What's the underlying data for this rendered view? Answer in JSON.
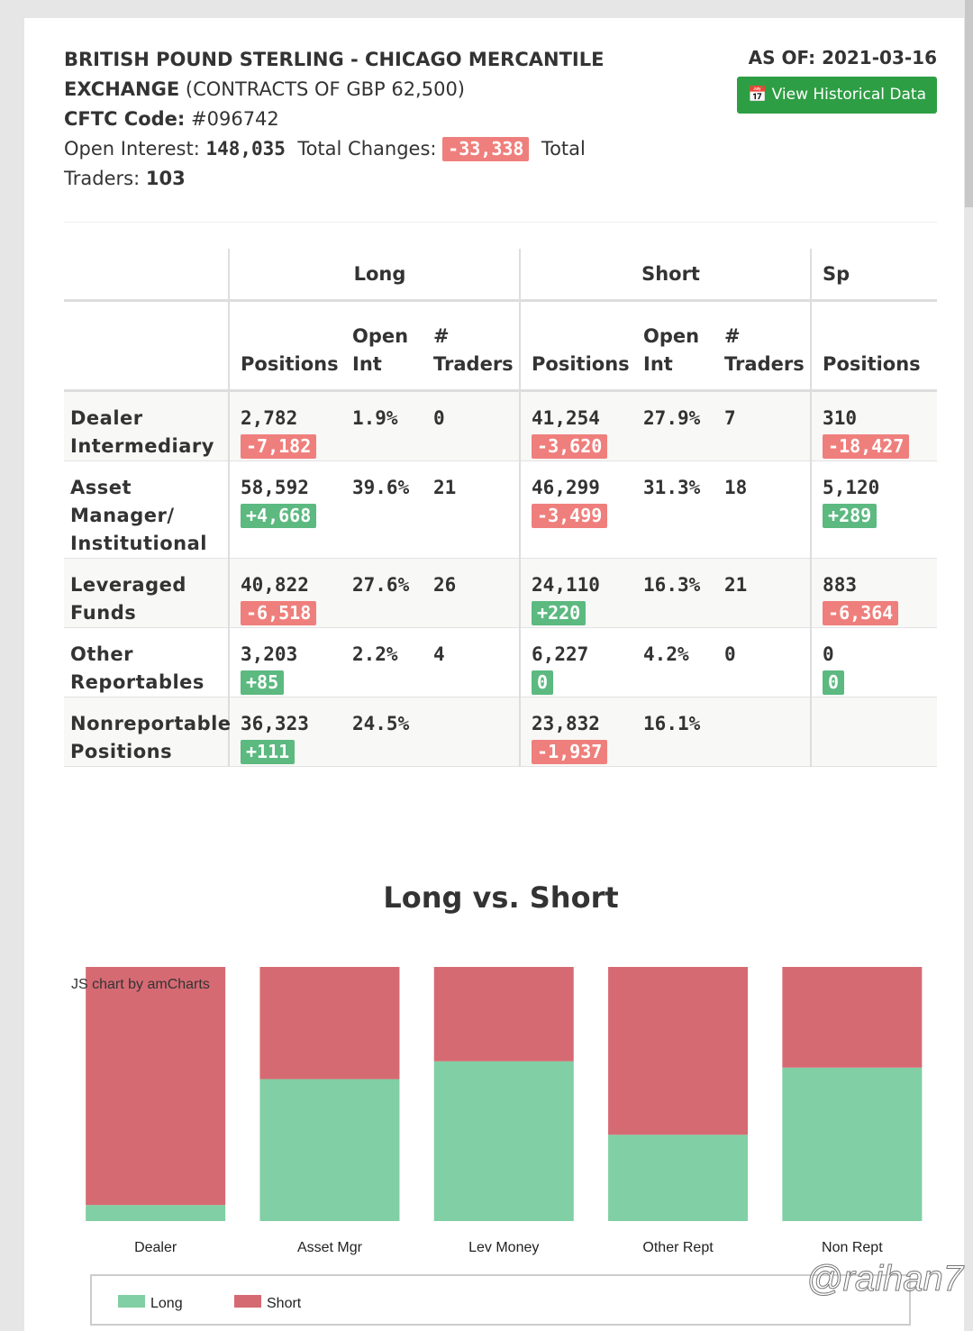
{
  "header": {
    "title": "BRITISH POUND STERLING - CHICAGO MERCANTILE EXCHANGE",
    "contract": "(CONTRACTS OF GBP 62,500)",
    "as_of_label": "AS OF:",
    "as_of": "2021-03-16",
    "button": "View Historical Data",
    "code_label": "CFTC Code:",
    "code": "#096742",
    "open_interest_label": "Open Interest:",
    "open_interest": "148,035",
    "total_changes_label": "Total Changes:",
    "total_changes": "-33,338",
    "total_traders_label": "Total Traders:",
    "total_traders": "103"
  },
  "table": {
    "groups": [
      "Long",
      "Short",
      "Sp"
    ],
    "columns": [
      "Positions",
      "Open Int",
      "# Traders",
      "Positions",
      "Open Int",
      "# Traders",
      "Positions"
    ],
    "rows": [
      {
        "label": "Dealer Intermediary",
        "cells": [
          {
            "value": "2,782",
            "change": "-7,182"
          },
          {
            "value": "1.9%"
          },
          {
            "value": "0"
          },
          {
            "value": "41,254",
            "change": "-3,620"
          },
          {
            "value": "27.9%"
          },
          {
            "value": "7"
          },
          {
            "value": "310",
            "change": "-18,427"
          }
        ]
      },
      {
        "label": "Asset Manager/ Institutional",
        "cells": [
          {
            "value": "58,592",
            "change": "+4,668"
          },
          {
            "value": "39.6%"
          },
          {
            "value": "21"
          },
          {
            "value": "46,299",
            "change": "-3,499"
          },
          {
            "value": "31.3%"
          },
          {
            "value": "18"
          },
          {
            "value": "5,120",
            "change": "+289"
          }
        ]
      },
      {
        "label": "Leveraged Funds",
        "cells": [
          {
            "value": "40,822",
            "change": "-6,518"
          },
          {
            "value": "27.6%"
          },
          {
            "value": "26"
          },
          {
            "value": "24,110",
            "change": "+220"
          },
          {
            "value": "16.3%"
          },
          {
            "value": "21"
          },
          {
            "value": "883",
            "change": "-6,364"
          }
        ]
      },
      {
        "label": "Other Reportables",
        "cells": [
          {
            "value": "3,203",
            "change": "+85"
          },
          {
            "value": "2.2%"
          },
          {
            "value": "4"
          },
          {
            "value": "6,227",
            "change": "0"
          },
          {
            "value": "4.2%"
          },
          {
            "value": "0"
          },
          {
            "value": "0",
            "change": "0"
          }
        ]
      },
      {
        "label": "Nonreportable Positions",
        "cells": [
          {
            "value": "36,323",
            "change": "+111"
          },
          {
            "value": "24.5%"
          },
          null,
          {
            "value": "23,832",
            "change": "-1,937"
          },
          {
            "value": "16.1%"
          },
          null,
          null
        ]
      }
    ]
  },
  "chart_data": {
    "type": "stacked_percent_bar",
    "title": "Long vs. Short",
    "credit": "JS chart by amCharts",
    "categories": [
      "Dealer",
      "Asset Mgr",
      "Lev Money",
      "Other Rept",
      "Non Rept"
    ],
    "series": [
      {
        "name": "Long",
        "color": "#81cfa4",
        "values": [
          2782,
          58592,
          40822,
          3203,
          36323
        ]
      },
      {
        "name": "Short",
        "color": "#d66a73",
        "values": [
          41254,
          46299,
          24110,
          6227,
          23832
        ]
      }
    ],
    "legend": "bottom"
  },
  "watermark": "@raihan7"
}
